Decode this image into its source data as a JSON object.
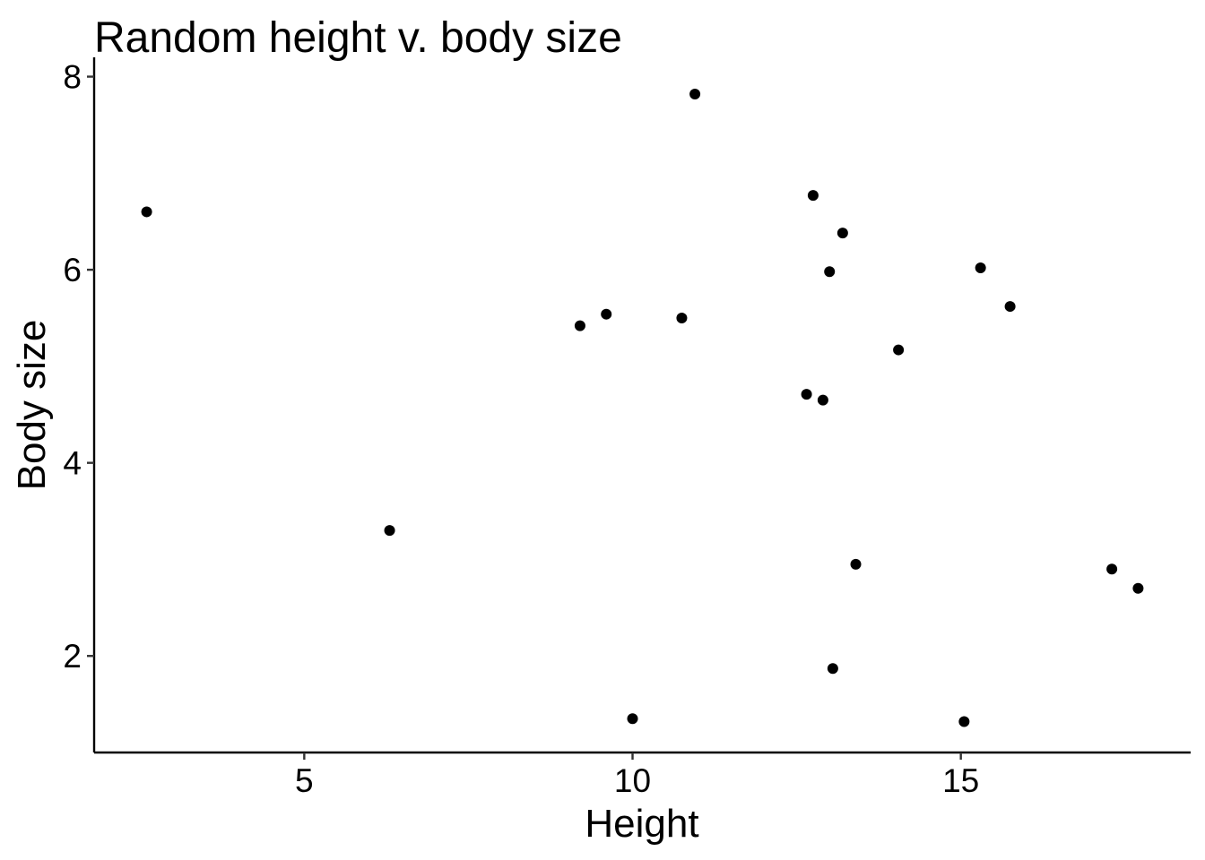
{
  "chart_data": {
    "type": "scatter",
    "title": "Random height v. body size",
    "xlabel": "Height",
    "ylabel": "Body size",
    "xlim": [
      1.8,
      18.5
    ],
    "ylim": [
      1.0,
      8.2
    ],
    "xticks": [
      5,
      10,
      15
    ],
    "yticks": [
      2,
      4,
      6,
      8
    ],
    "xtick_labels": [
      "5",
      "10",
      "15"
    ],
    "ytick_labels": [
      "2",
      "4",
      "6",
      "8"
    ],
    "grid": false,
    "point_color": "#000000",
    "points": [
      {
        "x": 2.6,
        "y": 6.6
      },
      {
        "x": 6.3,
        "y": 3.3
      },
      {
        "x": 9.2,
        "y": 5.42
      },
      {
        "x": 9.6,
        "y": 5.54
      },
      {
        "x": 10.0,
        "y": 1.35
      },
      {
        "x": 10.75,
        "y": 5.5
      },
      {
        "x": 10.95,
        "y": 7.82
      },
      {
        "x": 12.65,
        "y": 4.71
      },
      {
        "x": 12.75,
        "y": 6.77
      },
      {
        "x": 12.9,
        "y": 4.65
      },
      {
        "x": 13.0,
        "y": 5.98
      },
      {
        "x": 13.05,
        "y": 1.87
      },
      {
        "x": 13.2,
        "y": 6.38
      },
      {
        "x": 13.4,
        "y": 2.95
      },
      {
        "x": 14.05,
        "y": 5.17
      },
      {
        "x": 15.05,
        "y": 1.32
      },
      {
        "x": 15.3,
        "y": 6.02
      },
      {
        "x": 15.75,
        "y": 5.62
      },
      {
        "x": 17.3,
        "y": 2.9
      },
      {
        "x": 17.7,
        "y": 2.7
      }
    ]
  }
}
